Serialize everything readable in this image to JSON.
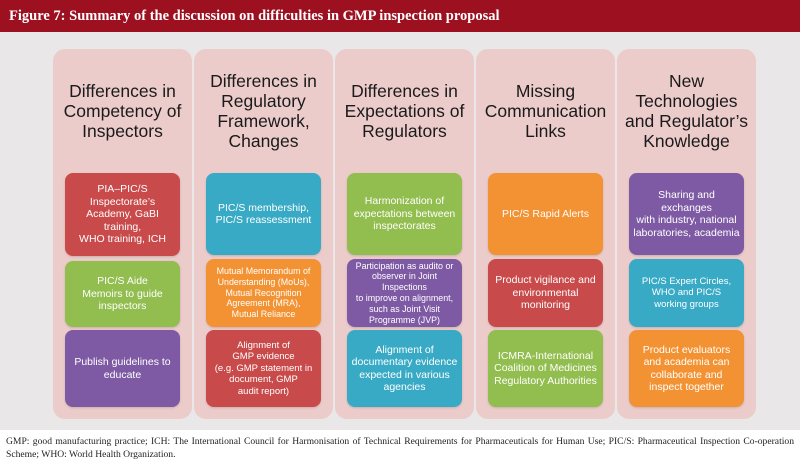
{
  "figure_title": "Figure 7: Summary of the discussion on difficulties in GMP inspection proposal",
  "columns": [
    {
      "title": "Differences in\nCompetency of\nInspectors",
      "cards": [
        {
          "text": "PIA–PIC/S\nInspectorate’s\nAcademy, GaBI\ntraining,\nWHO training, ICH",
          "color": "#c94a4a"
        },
        {
          "text": "PIC/S Aide\nMemoirs to guide\ninspectors",
          "color": "#92bd4f"
        },
        {
          "text": "Publish guidelines to\neducate",
          "color": "#7d5aa3"
        }
      ]
    },
    {
      "title": "Differences in\nRegulatory\nFramework,\nChanges",
      "cards": [
        {
          "text": "PIC/S membership,\nPIC/S reassessment",
          "color": "#38aac5"
        },
        {
          "text": "Mutual Memorandum of\nUnderstanding (MoUs),\nMutual Recognition\nAgreement (MRA),\nMutual Reliance",
          "color": "#f39233"
        },
        {
          "text": "Alignment of\nGMP evidence\n(e.g. GMP statement in\ndocument, GMP\naudit report)",
          "color": "#c94a4a"
        }
      ]
    },
    {
      "title": "Differences in\nExpectations of\nRegulators",
      "cards": [
        {
          "text": "Harmonization of\nexpectations between\ninspectorates",
          "color": "#92bd4f"
        },
        {
          "text": "Participation as audito or\nobserver in Joint Inspections\nto improve on alignment,\nsuch as Joint Visit\nProgramme (JVP)",
          "color": "#7d5aa3"
        },
        {
          "text": "Alignment of\ndocumentary evidence\nexpected in various\nagencies",
          "color": "#38aac5"
        }
      ]
    },
    {
      "title": "Missing\nCommunication\nLinks",
      "cards": [
        {
          "text": "PIC/S Rapid Alerts",
          "color": "#f39233"
        },
        {
          "text": "Product vigilance and\nenvironmental\nmonitoring",
          "color": "#c94a4a"
        },
        {
          "text": "ICMRA-International\nCoalition of Medicines\nRegulatory Authorities",
          "color": "#92bd4f"
        }
      ]
    },
    {
      "title": "New\nTechnologies\nand Regulator’s\nKnowledge",
      "cards": [
        {
          "text": "Sharing and exchanges\nwith industry, national\nlaboratories, academia",
          "color": "#7d5aa3"
        },
        {
          "text": "PIC/S Expert Circles,\nWHO and PIC/S\nworking groups",
          "color": "#38aac5"
        },
        {
          "text": "Product evaluators\nand academia can\ncollaborate and\ninspect together",
          "color": "#f39233"
        }
      ]
    }
  ],
  "footnote": "GMP: good manufacturing practice; ICH: The International Council for Harmonisation of Technical Requirements for Pharmaceuticals for Human Use; PIC/S: Pharmaceutical Inspection Co-operation Scheme; WHO: World Health Organization."
}
